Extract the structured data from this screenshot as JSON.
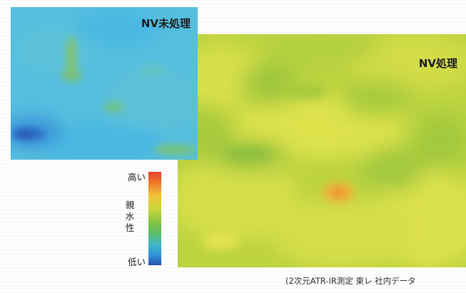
{
  "maps": {
    "untreated": {
      "label": "NV未処理",
      "base_color": "#52bde0"
    },
    "treated": {
      "label": "NV処理",
      "base_color": "#b9d23e"
    }
  },
  "legend": {
    "high": "高い",
    "property": "親水性",
    "low": "低い",
    "colors": [
      "#e8412c",
      "#f2c43a",
      "#7ec242",
      "#3fb7c9",
      "#2a4fb0"
    ]
  },
  "caption": "(2次元ATR-IR測定 東レ 社内データ"
}
